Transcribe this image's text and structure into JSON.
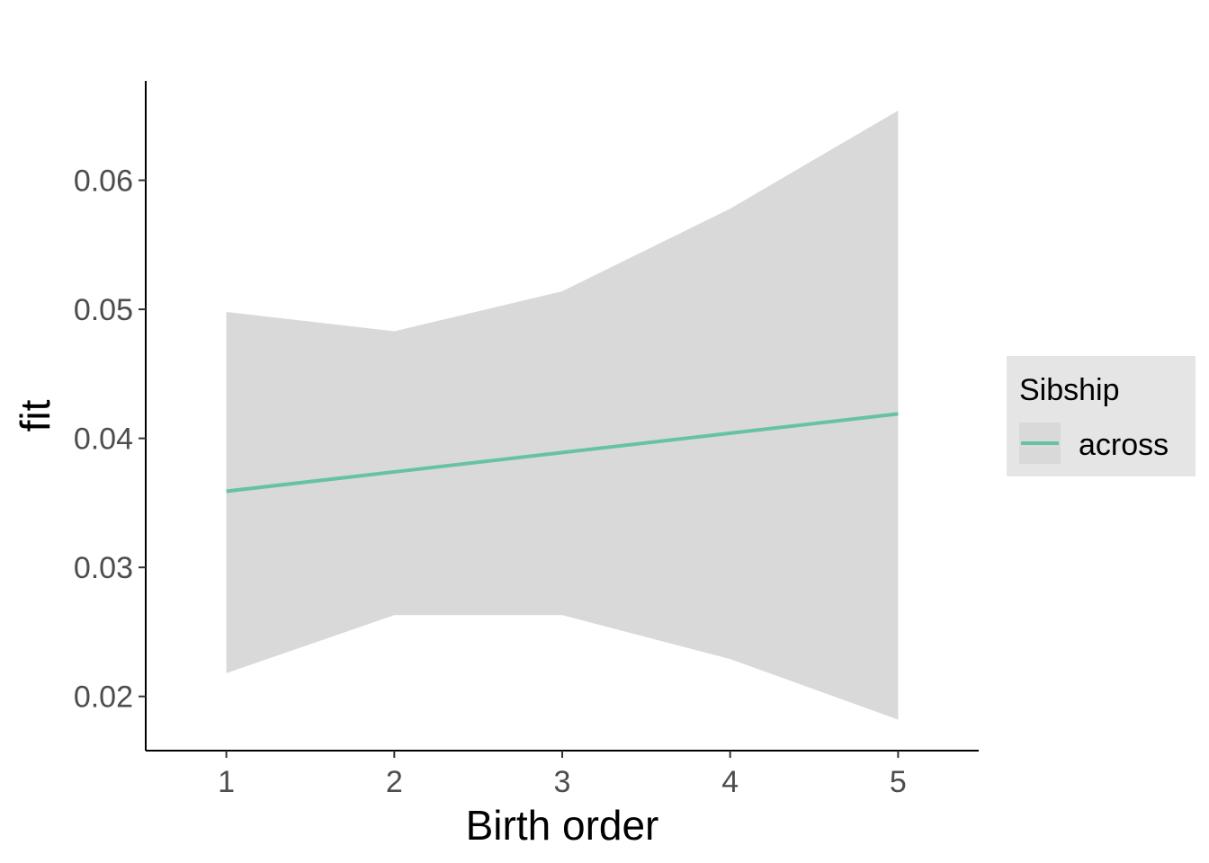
{
  "chart_data": {
    "type": "line",
    "xlabel": "Birth order",
    "ylabel": "fit",
    "x": [
      1,
      2,
      3,
      4,
      5
    ],
    "x_ticks": [
      "1",
      "2",
      "3",
      "4",
      "5"
    ],
    "y_ticks": [
      "0.02",
      "0.03",
      "0.04",
      "0.05",
      "0.06"
    ],
    "xlim": [
      0.52,
      5.48
    ],
    "ylim": [
      0.0158,
      0.0677
    ],
    "series": [
      {
        "name": "across",
        "color": "#66c2a5",
        "values": [
          0.0359,
          0.0374,
          0.0389,
          0.0404,
          0.0419
        ],
        "lower": [
          0.0218,
          0.0263,
          0.0263,
          0.0229,
          0.0182
        ],
        "upper": [
          0.0498,
          0.0483,
          0.0514,
          0.0578,
          0.0654
        ]
      }
    ],
    "ribbon_color": "#d9d9d9",
    "legend": {
      "title": "Sibship",
      "position": "right"
    },
    "grid": false
  }
}
